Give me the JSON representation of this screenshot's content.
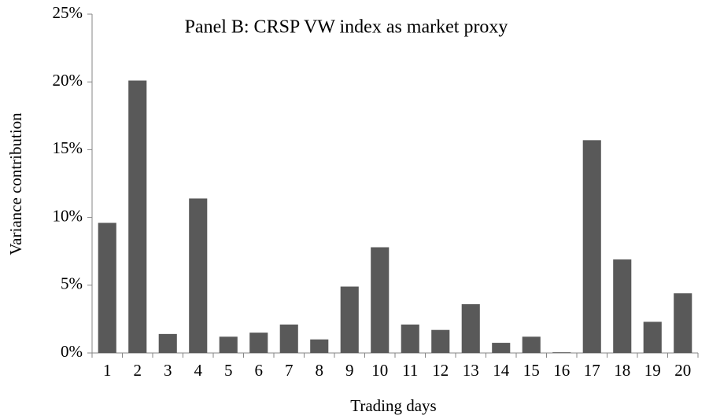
{
  "chart_data": {
    "type": "bar",
    "title": "Panel B: CRSP VW index as market proxy",
    "x_label": "Trading days",
    "y_label": "Variance contribution",
    "categories": [
      "1",
      "2",
      "3",
      "4",
      "5",
      "6",
      "7",
      "8",
      "9",
      "10",
      "11",
      "12",
      "13",
      "14",
      "15",
      "16",
      "17",
      "18",
      "19",
      "20"
    ],
    "values": [
      9.6,
      20.1,
      1.4,
      11.4,
      1.2,
      1.5,
      2.1,
      1.0,
      4.9,
      7.8,
      2.1,
      1.7,
      3.6,
      0.75,
      1.2,
      0.05,
      15.7,
      6.9,
      2.3,
      4.4
    ],
    "color": "#595959",
    "ylim": [
      0,
      25
    ],
    "yticks": [
      {
        "value": 0,
        "label": "0%"
      },
      {
        "value": 5,
        "label": "5%"
      },
      {
        "value": 10,
        "label": "10%"
      },
      {
        "value": 15,
        "label": "15%"
      },
      {
        "value": 20,
        "label": "20%"
      },
      {
        "value": 25,
        "label": "25%"
      }
    ],
    "grid": false
  }
}
